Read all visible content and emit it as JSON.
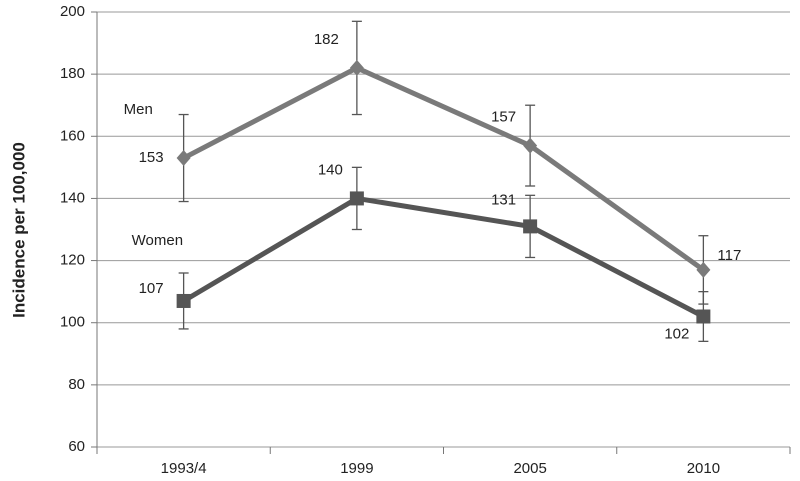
{
  "chart_data": {
    "type": "line",
    "y_label": "Incidence per 100,000",
    "categories": [
      "1993/4",
      "1999",
      "2005",
      "2010"
    ],
    "series": [
      {
        "name": "Men",
        "color": "#7a7a7a",
        "marker": "diamond",
        "values": [
          153,
          182,
          157,
          117
        ],
        "errors": [
          14,
          15,
          13,
          11
        ]
      },
      {
        "name": "Women",
        "color": "#555555",
        "marker": "square",
        "values": [
          107,
          140,
          131,
          102
        ],
        "errors": [
          9,
          10,
          10,
          8
        ]
      }
    ],
    "ylim": [
      60,
      200
    ],
    "yticks": [
      60,
      80,
      100,
      120,
      140,
      160,
      180,
      200
    ],
    "grid": true
  }
}
